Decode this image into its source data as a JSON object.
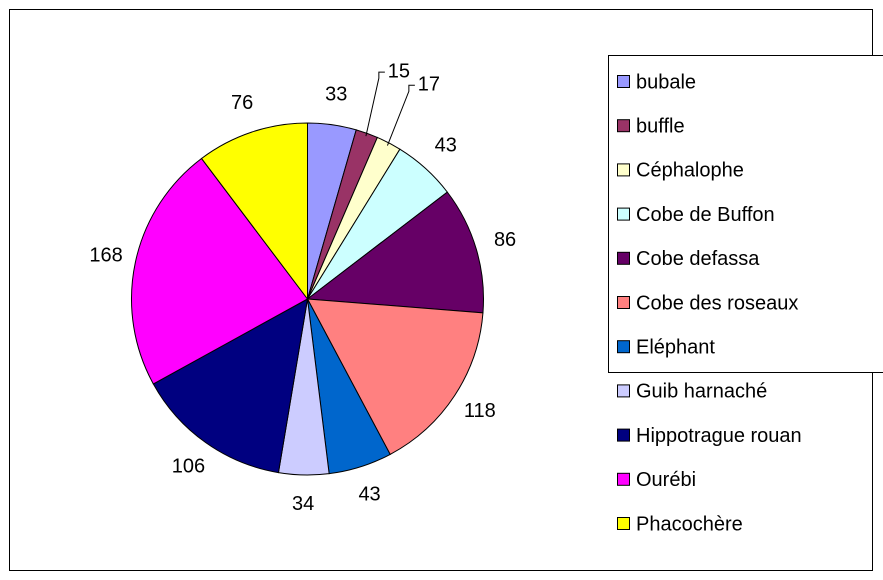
{
  "chart_data": {
    "type": "pie",
    "categories": [
      "bubale",
      "buffle",
      "Céphalophe",
      "Cobe de Buffon",
      "Cobe defassa",
      "Cobe des roseaux",
      "Eléphant",
      "Guib harnaché",
      "Hippotrague rouan",
      "Ourébi",
      "Phacochère"
    ],
    "values": [
      33,
      15,
      17,
      43,
      86,
      118,
      43,
      34,
      106,
      168,
      76
    ],
    "colors": [
      "#9999ff",
      "#993366",
      "#ffffcc",
      "#ccffff",
      "#660066",
      "#ff8080",
      "#0066cc",
      "#ccccff",
      "#000080",
      "#ff00ff",
      "#ffff00"
    ],
    "legend": "right"
  }
}
